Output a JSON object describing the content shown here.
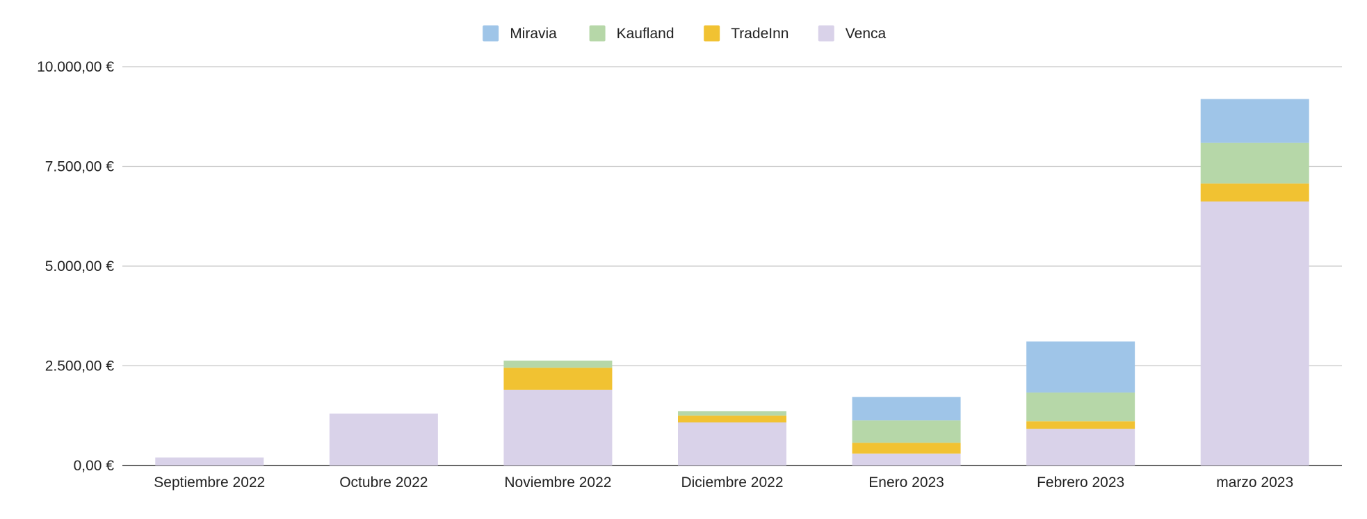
{
  "chart_data": {
    "type": "bar",
    "stacked": true,
    "title": "",
    "xlabel": "",
    "ylabel": "",
    "categories": [
      "Septiembre 2022",
      "Octubre 2022",
      "Noviembre 2022",
      "Diciembre 2022",
      "Enero 2023",
      "Febrero 2023",
      "marzo 2023"
    ],
    "series": [
      {
        "name": "Venca",
        "color": "#d9d2e9",
        "values": [
          200,
          1300,
          1900,
          1080,
          300,
          920,
          6620
        ]
      },
      {
        "name": "TradeInn",
        "color": "#f1c232",
        "values": [
          0,
          0,
          550,
          170,
          270,
          190,
          450
        ]
      },
      {
        "name": "Kaufland",
        "color": "#b6d7a8",
        "values": [
          0,
          0,
          180,
          110,
          560,
          720,
          1020
        ]
      },
      {
        "name": "Miravia",
        "color": "#9fc5e8",
        "values": [
          0,
          0,
          0,
          0,
          590,
          1280,
          1100
        ]
      }
    ],
    "legend_order": [
      "Miravia",
      "Kaufland",
      "TradeInn",
      "Venca"
    ],
    "legend_position": "top",
    "ylim": [
      0,
      10000
    ],
    "yticks": [
      0,
      2500,
      5000,
      7500,
      10000
    ],
    "ytick_labels": [
      "0,00 €",
      "2.500,00 €",
      "5.000,00 €",
      "7.500,00 €",
      "10.000,00 €"
    ],
    "grid": true
  }
}
